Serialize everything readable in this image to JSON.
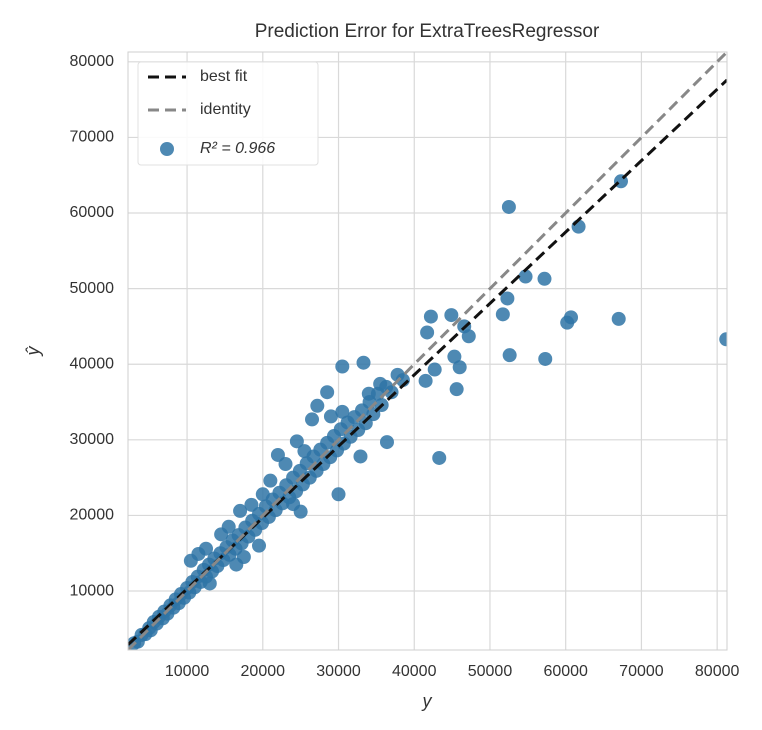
{
  "chart_data": {
    "type": "scatter",
    "title": "Prediction Error for ExtraTreesRegressor",
    "x_label": "y",
    "y_label": "ŷ",
    "xlim": [
      2200,
      81300
    ],
    "ylim": [
      2200,
      81300
    ],
    "xticks": [
      10000,
      20000,
      30000,
      40000,
      50000,
      60000,
      70000,
      80000
    ],
    "yticks": [
      10000,
      20000,
      30000,
      40000,
      50000,
      60000,
      70000,
      80000
    ],
    "grid": true,
    "legend": "upper left",
    "series": [
      {
        "name": "best fit",
        "type": "line",
        "color": "#111111",
        "x": [
          2200,
          81300
        ],
        "values": [
          2900,
          77600
        ]
      },
      {
        "name": "identity",
        "type": "line",
        "color": "#888888",
        "x": [
          2200,
          81300
        ],
        "values": [
          2200,
          81300
        ]
      },
      {
        "name": "R² = 0.966",
        "type": "scatter",
        "color": "#2f74a6",
        "x": [
          3000,
          3500,
          4000,
          4500,
          5000,
          5200,
          5600,
          6000,
          6300,
          6800,
          7000,
          7400,
          7800,
          8200,
          8500,
          8900,
          9200,
          9600,
          10000,
          10300,
          10700,
          11000,
          11400,
          11800,
          12200,
          12500,
          12900,
          13300,
          13600,
          14000,
          14400,
          14800,
          15200,
          15600,
          16000,
          16400,
          16800,
          17200,
          17700,
          18100,
          18600,
          19000,
          19500,
          19900,
          20400,
          20800,
          21300,
          21700,
          22200,
          22600,
          23100,
          23500,
          24000,
          24400,
          24900,
          25300,
          25800,
          26200,
          26700,
          27100,
          27600,
          28000,
          28500,
          28900,
          29400,
          29800,
          30300,
          30700,
          31200,
          31600,
          32100,
          32600,
          33100,
          33600,
          34100,
          34600,
          35200,
          35700,
          36300,
          37000,
          37800,
          38500,
          22000,
          24500,
          26500,
          27200,
          28500,
          34000,
          35500,
          16500,
          17500,
          13000,
          19500,
          25000,
          24000,
          10500,
          11500,
          12500,
          14500,
          15500,
          17000,
          18500,
          20000,
          21000,
          23000,
          25500,
          29000,
          30500,
          52500,
          67300,
          61700,
          57200,
          54700,
          52300,
          51700,
          52600,
          57300,
          60200,
          60700,
          67000,
          81200,
          43300,
          45600,
          41700,
          42200,
          44900,
          46600,
          47200,
          45300,
          46000,
          42700,
          41500,
          30000,
          36400,
          33300,
          30500,
          32900
        ],
        "values": [
          3100,
          3300,
          4200,
          4300,
          5100,
          4800,
          5900,
          5700,
          6600,
          6400,
          7300,
          7000,
          8100,
          7800,
          8900,
          8400,
          9600,
          9100,
          10400,
          9800,
          11200,
          10500,
          11900,
          11200,
          12800,
          11900,
          13500,
          12600,
          14300,
          13300,
          15000,
          14100,
          15800,
          14800,
          16700,
          15600,
          17400,
          16300,
          18400,
          17200,
          19300,
          18100,
          20200,
          19000,
          21200,
          19800,
          22100,
          20700,
          23000,
          21600,
          24000,
          22400,
          25000,
          23200,
          25900,
          24100,
          26900,
          25000,
          27800,
          25900,
          28700,
          26800,
          29600,
          27700,
          30500,
          28600,
          31400,
          29500,
          32300,
          30400,
          33000,
          31300,
          33900,
          32200,
          35000,
          33400,
          36100,
          34600,
          37000,
          36300,
          38600,
          37900,
          28000,
          29800,
          32700,
          34500,
          36300,
          36100,
          37400,
          13500,
          14500,
          11000,
          16000,
          20500,
          21500,
          14000,
          14900,
          15600,
          17500,
          18500,
          20600,
          21400,
          22800,
          24600,
          26800,
          28500,
          33100,
          33700,
          60800,
          64200,
          58200,
          51300,
          51600,
          48700,
          46600,
          41200,
          40700,
          45500,
          46200,
          46000,
          43300,
          27600,
          36700,
          44200,
          46300,
          46500,
          45000,
          43700,
          41000,
          39600,
          39300,
          37800,
          22800,
          29700,
          40200,
          39700,
          27800
        ]
      }
    ]
  }
}
